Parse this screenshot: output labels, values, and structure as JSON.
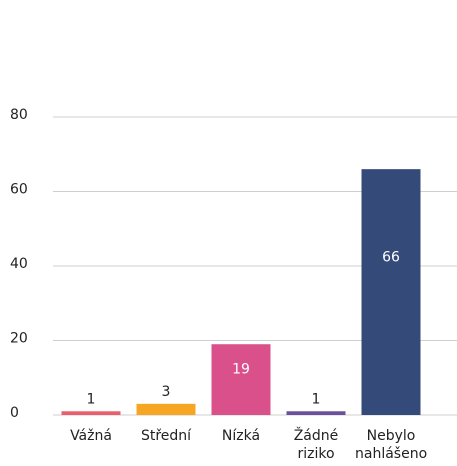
{
  "chart_data": {
    "type": "bar",
    "categories": [
      "Vážná",
      "Střední",
      "Nízká",
      "Žádné riziko",
      "Nebylo nahlášeno"
    ],
    "values": [
      1,
      3,
      19,
      1,
      66
    ],
    "colors": [
      "#e8606b",
      "#f6a623",
      "#d9508a",
      "#6b4f98",
      "#344a78"
    ],
    "ylim": [
      0,
      80
    ],
    "yticks": [
      0,
      20,
      40,
      60,
      80
    ],
    "grid": true
  }
}
